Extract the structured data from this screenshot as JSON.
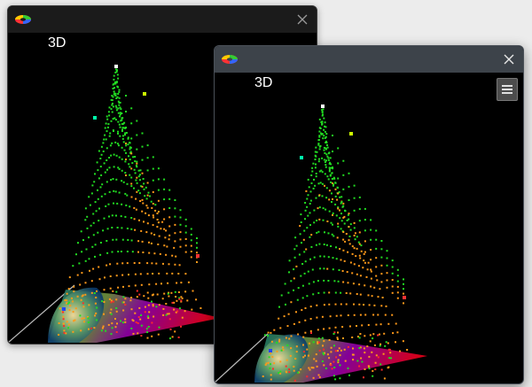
{
  "windows": [
    {
      "id": "win1",
      "plot_label": "3D"
    },
    {
      "id": "win2",
      "plot_label": "3D"
    }
  ],
  "icons": {
    "app": "color-wheel-icon",
    "close": "close-icon",
    "menu": "hamburger-menu-icon"
  },
  "colors": {
    "point_green": "#22dd22",
    "point_orange": "#ff9a1a",
    "point_red": "#ff2a2a",
    "surface_purple": "#8a00a0",
    "surface_red": "#e0001a",
    "surface_teal": "#0a6b6b"
  }
}
